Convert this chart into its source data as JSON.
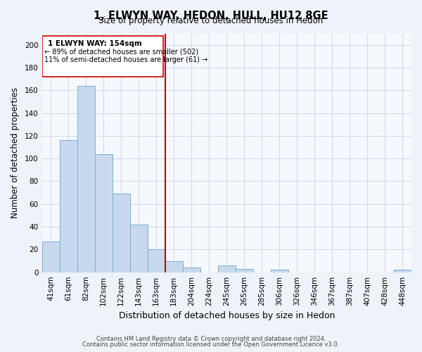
{
  "title": "1, ELWYN WAY, HEDON, HULL, HU12 8GE",
  "subtitle": "Size of property relative to detached houses in Hedon",
  "xlabel": "Distribution of detached houses by size in Hedon",
  "ylabel": "Number of detached properties",
  "bar_color": "#c8d9ee",
  "bar_edge_color": "#7aafd4",
  "vline_color": "#cc0000",
  "annotations": [
    "1 ELWYN WAY: 154sqm",
    "← 89% of detached houses are smaller (502)",
    "11% of semi-detached houses are larger (61) →"
  ],
  "categories": [
    "41sqm",
    "61sqm",
    "82sqm",
    "102sqm",
    "122sqm",
    "143sqm",
    "163sqm",
    "183sqm",
    "204sqm",
    "224sqm",
    "245sqm",
    "265sqm",
    "285sqm",
    "306sqm",
    "326sqm",
    "346sqm",
    "367sqm",
    "387sqm",
    "407sqm",
    "428sqm",
    "448sqm"
  ],
  "values": [
    27,
    116,
    164,
    104,
    69,
    42,
    20,
    10,
    4,
    0,
    6,
    3,
    0,
    2,
    0,
    0,
    0,
    0,
    0,
    0,
    2
  ],
  "ylim": [
    0,
    210
  ],
  "yticks": [
    0,
    20,
    40,
    60,
    80,
    100,
    120,
    140,
    160,
    180,
    200
  ],
  "footer1": "Contains HM Land Registry data © Crown copyright and database right 2024.",
  "footer2": "Contains public sector information licensed under the Open Government Licence v3.0.",
  "bg_color": "#eef2f9",
  "plot_bg_color": "#f5f8fd",
  "grid_color": "#cdd8e8"
}
